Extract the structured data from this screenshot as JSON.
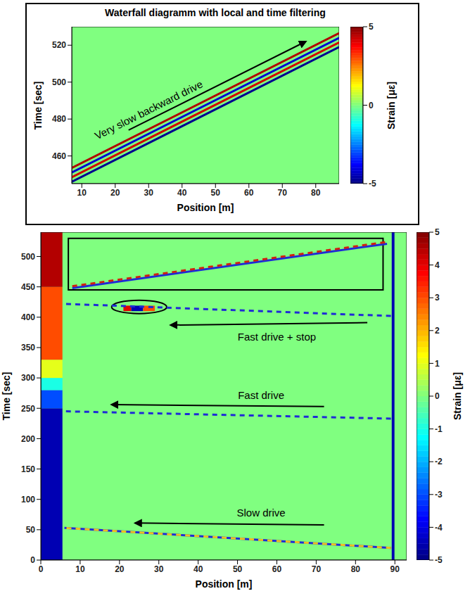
{
  "chart_data": [
    {
      "type": "heatmap",
      "title": "Waterfall diagramm with local and time filtering",
      "x_label": "Position [m]",
      "y_label": "Time [sec]",
      "xlim": [
        7,
        87
      ],
      "xticks": [
        10,
        20,
        30,
        40,
        50,
        60,
        70,
        80
      ],
      "ylim": [
        445,
        530
      ],
      "yticks": [
        460,
        480,
        500,
        520
      ],
      "colorbar": {
        "label": "Strain [με]",
        "range": [
          -5,
          5
        ],
        "ticks": [
          -5,
          0,
          5
        ]
      },
      "cells": [
        {
          "x": [
            7,
            87
          ],
          "y": [
            445,
            530
          ],
          "value": 0
        }
      ],
      "ellipses": [],
      "series": [
        {
          "x": [
            7,
            87
          ],
          "y": [
            446,
            519
          ],
          "color": "#00008f",
          "line_style": "solid"
        },
        {
          "x": [
            7,
            87
          ],
          "y": [
            448.5,
            521.5
          ],
          "color": "#d00000",
          "line_style": "solid"
        },
        {
          "x": [
            7,
            87
          ],
          "y": [
            451,
            524
          ],
          "color": "#0000d0",
          "line_style": "solid"
        },
        {
          "x": [
            7,
            87
          ],
          "y": [
            453.5,
            526.5
          ],
          "color": "#b00000",
          "line_style": "solid"
        }
      ],
      "annotations": [
        {
          "text": "Very slow backward drive",
          "x": 30,
          "y": 485,
          "arrow": {
            "x": [
              24,
              77
            ],
            "y": [
              474,
              522
            ]
          }
        }
      ]
    },
    {
      "type": "heatmap",
      "x_label": "Position [m]",
      "y_label": "Time [sec]",
      "xlim": [
        0,
        93
      ],
      "xticks": [
        0,
        10,
        20,
        30,
        40,
        50,
        60,
        70,
        80,
        90
      ],
      "ylim": [
        0,
        540
      ],
      "yticks": [
        0,
        50,
        100,
        150,
        200,
        250,
        300,
        350,
        400,
        450,
        500
      ],
      "colorbar": {
        "label": "Strain [με]",
        "range": [
          -5,
          5
        ],
        "ticks": [
          -5,
          -4,
          -3,
          -2,
          -1,
          0,
          1,
          2,
          3,
          4,
          5
        ]
      },
      "cells": [
        {
          "x": [
            0,
            93
          ],
          "y": [
            0,
            540
          ],
          "value": 0
        },
        {
          "x": [
            0,
            5.5
          ],
          "y": [
            0,
            250
          ],
          "value": -4.5
        },
        {
          "x": [
            0,
            5.5
          ],
          "y": [
            250,
            280
          ],
          "value": -3
        },
        {
          "x": [
            0,
            5.5
          ],
          "y": [
            280,
            300
          ],
          "value": -1
        },
        {
          "x": [
            0,
            5.5
          ],
          "y": [
            300,
            330
          ],
          "value": 1
        },
        {
          "x": [
            0,
            5.5
          ],
          "y": [
            330,
            450
          ],
          "value": 3
        },
        {
          "x": [
            0,
            5.5
          ],
          "y": [
            450,
            540
          ],
          "value": 4.5
        },
        {
          "x": [
            89.2,
            89.9
          ],
          "y": [
            0,
            540
          ],
          "value": -4.5
        },
        {
          "x": [
            21,
            23
          ],
          "y": [
            410,
            419
          ],
          "value": 4
        },
        {
          "x": [
            23,
            26
          ],
          "y": [
            410,
            419
          ],
          "value": -4.5
        },
        {
          "x": [
            26,
            29
          ],
          "y": [
            410,
            419
          ],
          "value": 3
        }
      ],
      "ellipses": [
        {
          "x": [
            18,
            32
          ],
          "y": [
            406,
            428
          ]
        }
      ],
      "series": [
        {
          "x": [
            89,
            6
          ],
          "y": [
            20,
            53
          ],
          "color": "#1f2bd6",
          "line_style": "solid"
        },
        {
          "x": [
            89,
            6
          ],
          "y": [
            20,
            53
          ],
          "color": "#f0c020",
          "line_style": "dashed"
        },
        {
          "x": [
            89,
            6
          ],
          "y": [
            233,
            245
          ],
          "color": "#1f2bd6",
          "line_style": "dashed"
        },
        {
          "x": [
            89,
            6
          ],
          "y": [
            402,
            422
          ],
          "color": "#1f2bd6",
          "line_style": "dashed"
        },
        {
          "x": [
            8,
            88
          ],
          "y": [
            448,
            521
          ],
          "color": "#1f2bd6",
          "line_style": "solid"
        },
        {
          "x": [
            8,
            88
          ],
          "y": [
            451,
            524
          ],
          "color": "#d02010",
          "line_style": "dashed"
        }
      ],
      "annotations": [
        {
          "text": "Slow drive",
          "x": 56,
          "y": 78,
          "arrow": {
            "x": [
              72,
              24
            ],
            "y": [
              58,
              61
            ]
          }
        },
        {
          "text": "Fast drive",
          "x": 56,
          "y": 272,
          "arrow": {
            "x": [
              72,
              18
            ],
            "y": [
              253,
              256
            ]
          }
        },
        {
          "text": "Fast drive + stop",
          "x": 60,
          "y": 368,
          "arrow": {
            "x": [
              83,
              33
            ],
            "y": [
              391,
              387
            ]
          }
        }
      ]
    }
  ]
}
